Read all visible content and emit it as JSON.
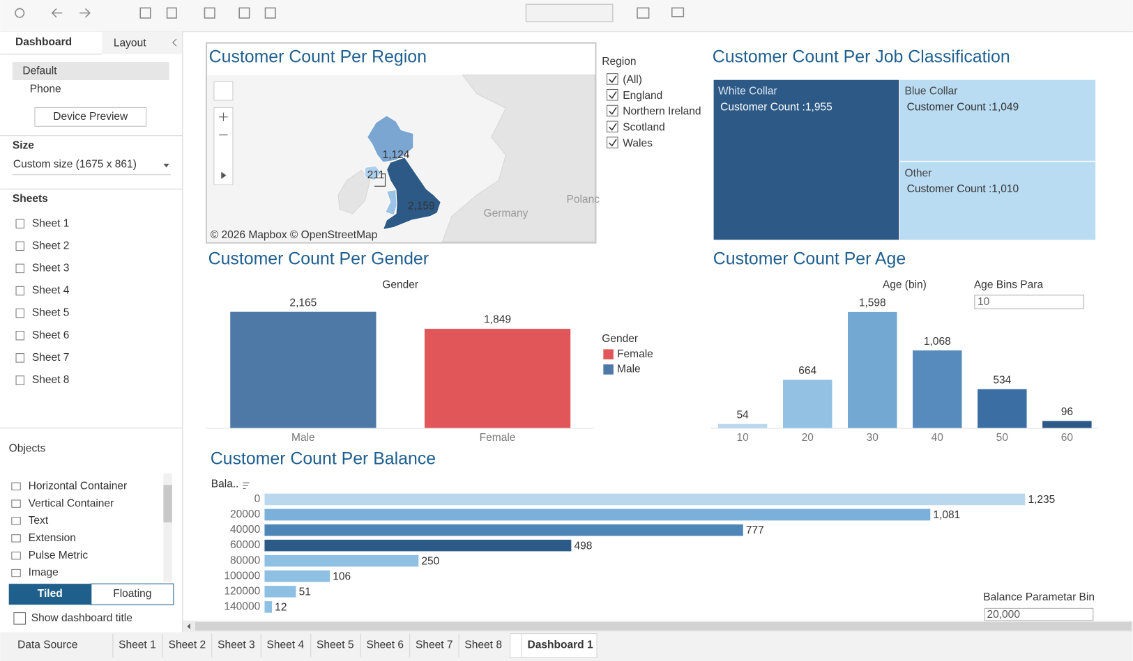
{
  "side_panel": {
    "tabs": [
      "Dashboard",
      "Layout"
    ],
    "devices": [
      "Default",
      "Phone"
    ],
    "device_preview": "Device Preview",
    "size_heading": "Size",
    "size_value": "Custom size (1675 x 861)",
    "sheets_heading": "Sheets",
    "sheets": [
      "Sheet 1",
      "Sheet 2",
      "Sheet 3",
      "Sheet 4",
      "Sheet 5",
      "Sheet 6",
      "Sheet 7",
      "Sheet 8"
    ],
    "objects_heading": "Objects",
    "objects": [
      "Horizontal Container",
      "Vertical Container",
      "Text",
      "Extension",
      "Pulse Metric",
      "Image"
    ],
    "layout_modes": [
      "Tiled",
      "Floating"
    ],
    "show_title": "Show dashboard title"
  },
  "bottom_tabs": [
    "Data Source",
    "Sheet 1",
    "Sheet 2",
    "Sheet 3",
    "Sheet 4",
    "Sheet 5",
    "Sheet 6",
    "Sheet 7",
    "Sheet 8",
    "Dashboard 1"
  ],
  "region_map": {
    "type": "map",
    "title": "Customer Count Per Region",
    "values": [
      1124,
      211,
      2159
    ],
    "value_labels": [
      "1,124",
      "211",
      "2,159"
    ],
    "colors": [
      "#7ba6d2",
      "#aed0ec",
      "#2c5985"
    ],
    "places": [
      "Polanc",
      "Germany"
    ],
    "attribution": "© 2026 Mapbox © OpenStreetMap"
  },
  "region_filter": {
    "title": "Region",
    "items": [
      "(All)",
      "England",
      "Northern Ireland",
      "Scotland",
      "Wales"
    ]
  },
  "job_treemap": {
    "type": "treemap",
    "title": "Customer Count Per Job Classification",
    "categories": [
      "White Collar",
      "Blue Collar",
      "Other"
    ],
    "values": [
      1955,
      1049,
      1010
    ],
    "value_labels": [
      "Customer Count :1,955",
      "Customer Count :1,049",
      "Customer Count :1,010"
    ],
    "colors": [
      "#2c5985",
      "#b9dcf2",
      "#b9dcf2"
    ]
  },
  "gender_chart": {
    "type": "bar",
    "title": "Customer Count Per Gender",
    "axis_header": "Gender",
    "categories": [
      "Male",
      "Female"
    ],
    "values": [
      2165,
      1849
    ],
    "value_labels": [
      "2,165",
      "1,849"
    ],
    "colors": [
      "#4e79a7",
      "#e15759"
    ],
    "ylim": [
      0,
      2530
    ],
    "legend": {
      "title": "Gender",
      "entries": [
        {
          "name": "Female",
          "color": "#e15759"
        },
        {
          "name": "Male",
          "color": "#4e79a7"
        }
      ]
    }
  },
  "age_chart": {
    "type": "bar",
    "title": "Customer Count Per Age",
    "axis_header": "Age (bin)",
    "categories": [
      "10",
      "20",
      "30",
      "40",
      "50",
      "60"
    ],
    "values": [
      54,
      664,
      1598,
      1068,
      534,
      96
    ],
    "value_labels": [
      "54",
      "664",
      "1,598",
      "1,068",
      "534",
      "96"
    ],
    "colors": [
      "#b9d8ee",
      "#93c1e3",
      "#72a8d2",
      "#578bbd",
      "#3b6ea3",
      "#2c5985"
    ],
    "ylim": [
      0,
      1870
    ],
    "parameter": {
      "label": "Age Bins Para",
      "value": "10"
    }
  },
  "balance_chart": {
    "type": "hbar",
    "title": "Customer Count Per Balance",
    "axis_header": "Bala..",
    "categories": [
      "0",
      "20000",
      "40000",
      "60000",
      "80000",
      "100000",
      "120000",
      "140000"
    ],
    "values": [
      1235,
      1081,
      777,
      498,
      250,
      106,
      51,
      12
    ],
    "value_labels": [
      "1,235",
      "1,081",
      "777",
      "498",
      "250",
      "106",
      "51",
      "12"
    ],
    "colors": [
      "#b9d8ee",
      "#7ab0d9",
      "#4f86b8",
      "#2c5a86",
      "#8ec0e3",
      "#8ec0e3",
      "#8ec0e3",
      "#8ec0e3"
    ],
    "xlim": [
      0,
      1350
    ],
    "parameter": {
      "label": "Balance Parametar Bin",
      "value": "20,000"
    }
  }
}
